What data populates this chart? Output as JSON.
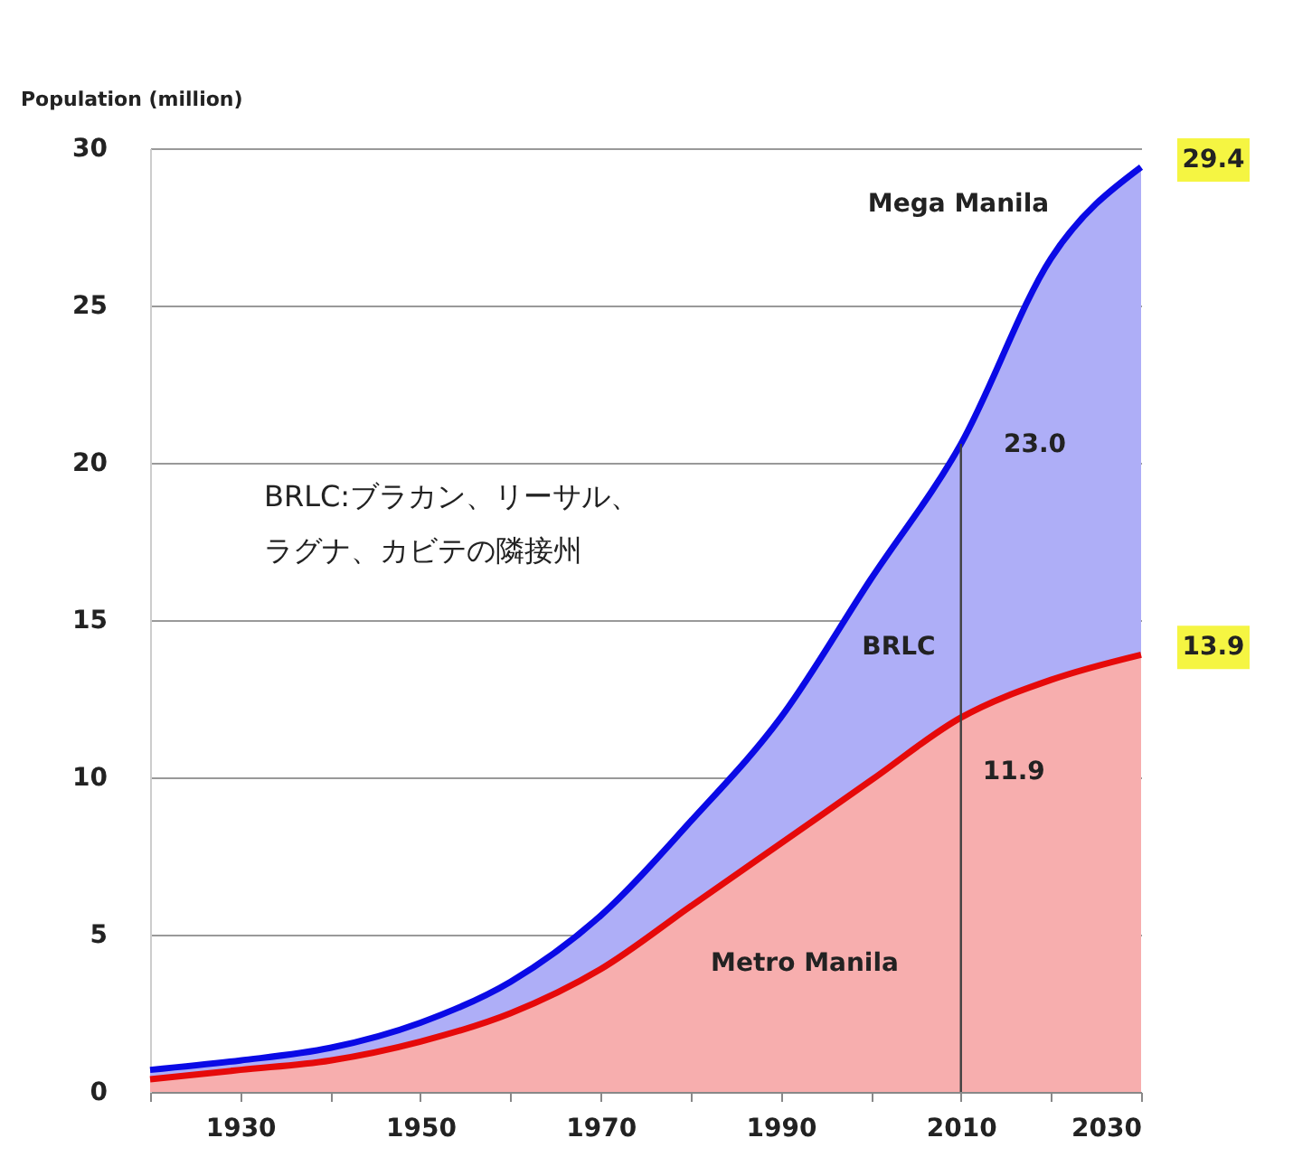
{
  "chart_data": {
    "type": "area",
    "ylabel": "Population (million)",
    "x": [
      1920,
      1930,
      1940,
      1950,
      1960,
      1970,
      1980,
      1990,
      2000,
      2010,
      2020,
      2030
    ],
    "xlim": [
      1920,
      2030
    ],
    "xticks": [
      {
        "value": 1920,
        "label": null
      },
      1930,
      {
        "value": 1940,
        "label": null
      },
      1950,
      {
        "value": 1960,
        "label": null
      },
      1970,
      {
        "value": 1980,
        "label": null
      },
      1990,
      {
        "value": 2000,
        "label": null
      },
      2010,
      {
        "value": 2020,
        "label": null
      },
      2030
    ],
    "ylim": [
      0,
      30
    ],
    "yticks": [
      0,
      5,
      10,
      15,
      20,
      25,
      30
    ],
    "grid": "y",
    "series": [
      {
        "name": "Mega Manila",
        "color": "#0a0ae6",
        "values": [
          0.7,
          1.0,
          1.4,
          2.2,
          3.5,
          5.6,
          8.6,
          11.9,
          16.3,
          20.6,
          26.5,
          29.4
        ],
        "value_labels": [
          null,
          null,
          null,
          null,
          null,
          null,
          null,
          null,
          null,
          null,
          null,
          "29.4"
        ]
      },
      {
        "name": "Metro Manila",
        "color": "#e60a0a",
        "values": [
          0.4,
          0.7,
          1.0,
          1.6,
          2.5,
          3.9,
          5.9,
          7.9,
          9.9,
          11.9,
          13.1,
          13.9
        ],
        "value_labels": [
          null,
          null,
          null,
          null,
          null,
          null,
          null,
          null,
          null,
          "11.9",
          null,
          "13.9"
        ]
      }
    ],
    "ref_lines": [
      {
        "axis": "x",
        "value": 2010,
        "color": "#404040"
      }
    ],
    "annotations": [
      "BRLC",
      "23.0",
      "BRLC:ブラカン、リーサル、ラグナ、カビテの隣接州"
    ]
  }
}
